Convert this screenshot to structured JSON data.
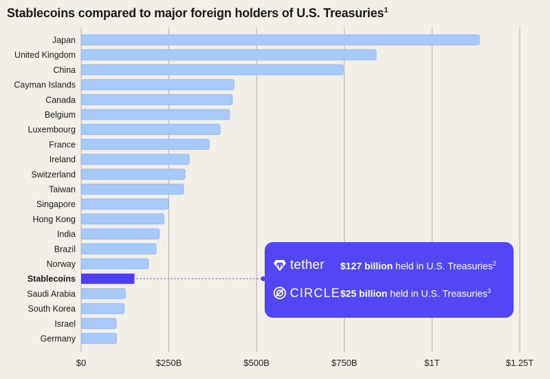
{
  "title": "Stablecoins compared to major foreign holders of U.S. Treasuries",
  "title_footnote": "1",
  "chart_data": {
    "type": "bar",
    "orientation": "horizontal",
    "title": "Stablecoins compared to major foreign holders of U.S. Treasuries",
    "categories": [
      "Japan",
      "United Kingdom",
      "China",
      "Cayman Islands",
      "Canada",
      "Belgium",
      "Luxembourg",
      "France",
      "Ireland",
      "Switzerland",
      "Taiwan",
      "Singapore",
      "Hong Kong",
      "India",
      "Brazil",
      "Norway",
      "Stablecoins",
      "Saudi Arabia",
      "South Korea",
      "Israel",
      "Germany"
    ],
    "values_billion_usd": [
      1135,
      841,
      747,
      436,
      431,
      423,
      396,
      365,
      308,
      296,
      292,
      249,
      236,
      223,
      214,
      192,
      152,
      126,
      123,
      100,
      101
    ],
    "highlight": "Stablecoins",
    "x_ticks": [
      "$0",
      "$250B",
      "$500B",
      "$750B",
      "$1T",
      "$1.25T"
    ],
    "x_tick_values": [
      0,
      250,
      500,
      750,
      1000,
      1250
    ],
    "xlim": [
      0,
      1250
    ],
    "grid": true,
    "colors": {
      "bar": "#a9c9fa",
      "bar_border": "#8fb3ef",
      "highlight": "#4f3ef0",
      "grid": "#b4b2aa",
      "background": "#f1efe8"
    }
  },
  "callout": {
    "background": "#5347f5",
    "rows": [
      {
        "icon": "tether-logo-icon",
        "brand": "tether",
        "amount": "$127 billion",
        "text": "held in U.S. Treasuries",
        "footnote": "2"
      },
      {
        "icon": "circle-logo-icon",
        "brand": "CIRCLE",
        "amount": "$25 billion",
        "text": "held in U.S. Treasuries",
        "footnote": "3"
      }
    ]
  }
}
